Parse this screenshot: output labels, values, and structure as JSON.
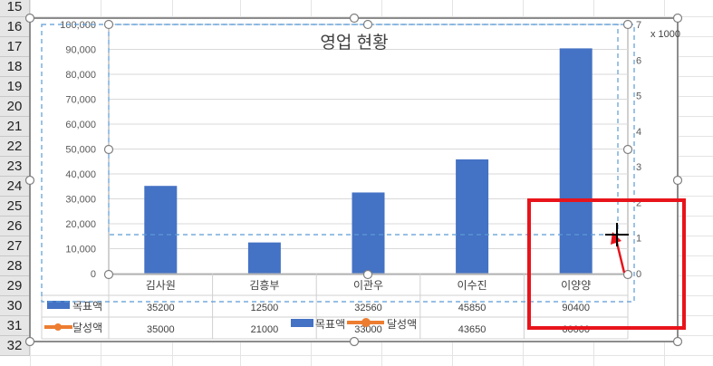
{
  "sheet": {
    "row_numbers": [
      "15",
      "16",
      "17",
      "18",
      "19",
      "20",
      "21",
      "22",
      "23",
      "24",
      "25",
      "26",
      "27",
      "28",
      "29",
      "30",
      "31",
      "32"
    ]
  },
  "chart_data": {
    "type": "bar",
    "title": "영업 현황",
    "categories": [
      "김사원",
      "김흥부",
      "이관우",
      "이수진",
      "이양양"
    ],
    "series": [
      {
        "name": "목표액",
        "type": "bar",
        "axis": "primary",
        "color": "#4472c4",
        "values": [
          35200,
          12500,
          32560,
          45850,
          90400
        ]
      },
      {
        "name": "달성액",
        "type": "line",
        "axis": "secondary",
        "color": "#ed7d31",
        "values": [
          35000,
          21000,
          33000,
          43650,
          60000
        ]
      }
    ],
    "y_primary": {
      "ticks": [
        "0",
        "10,000",
        "20,000",
        "30,000",
        "40,000",
        "50,000",
        "60,000",
        "70,000",
        "80,000",
        "90,000",
        "100,000"
      ],
      "ylim": [
        0,
        100000
      ]
    },
    "y_secondary": {
      "ticks": [
        "0",
        "1",
        "2",
        "3",
        "4",
        "5",
        "6",
        "7"
      ],
      "ylim": [
        0,
        7
      ],
      "unit_label": "x 1000"
    },
    "table": {
      "rows": [
        {
          "label": "목표액",
          "values": [
            "35200",
            "12500",
            "32560",
            "45850",
            "90400"
          ]
        },
        {
          "label": "달성액",
          "values": [
            "35000",
            "21000",
            "33000",
            "43650",
            "60000"
          ]
        }
      ]
    },
    "legend": {
      "placement": "bottom",
      "items": [
        "목표액",
        "달성액"
      ]
    },
    "grid": true
  },
  "colors": {
    "bar": "#4472c4",
    "line": "#ed7d31",
    "highlight": "#e8141b",
    "selection": "#5b9bd5"
  },
  "annotations": {
    "highlight_box": "red-rectangle",
    "arrow": "red-arrow",
    "cursor": "crosshair-cursor"
  }
}
